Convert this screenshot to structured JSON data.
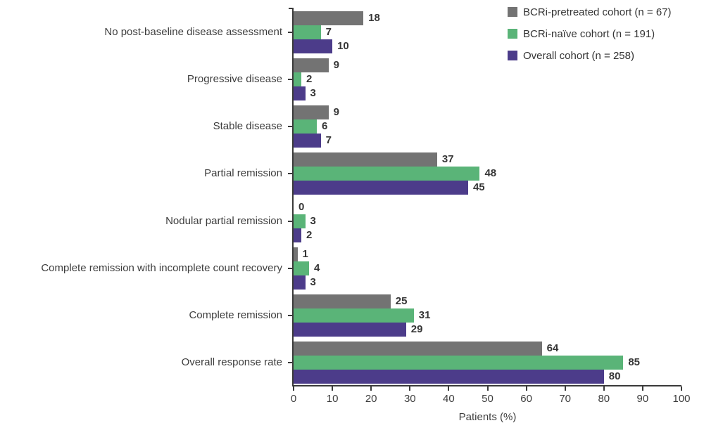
{
  "chart_data": {
    "type": "bar",
    "orientation": "horizontal",
    "xlabel": "Patients (%)",
    "xlim": [
      0,
      100
    ],
    "xticks": [
      0,
      10,
      20,
      30,
      40,
      50,
      60,
      70,
      80,
      90,
      100
    ],
    "grid": false,
    "legend_position": "top-right",
    "categories": [
      "No post-baseline disease assessment",
      "Progressive disease",
      "Stable disease",
      "Partial remission",
      "Nodular partial remission",
      "Complete remission with incomplete count recovery",
      "Complete remission",
      "Overall response rate"
    ],
    "series": [
      {
        "name": "BCRi-pretreated cohort (n = 67)",
        "color": "#737373",
        "values": [
          18,
          9,
          9,
          37,
          0,
          1,
          25,
          64
        ]
      },
      {
        "name": "BCRi-naïve cohort (n = 191)",
        "color": "#5ab478",
        "values": [
          7,
          2,
          6,
          48,
          3,
          4,
          31,
          85
        ]
      },
      {
        "name": "Overall cohort (n = 258)",
        "color": "#4c3c8a",
        "values": [
          10,
          3,
          7,
          45,
          2,
          3,
          29,
          80
        ]
      }
    ],
    "colors": {
      "axis": "#3a3a3a",
      "text": "#3d3d3d",
      "value_label": "#363636"
    }
  }
}
